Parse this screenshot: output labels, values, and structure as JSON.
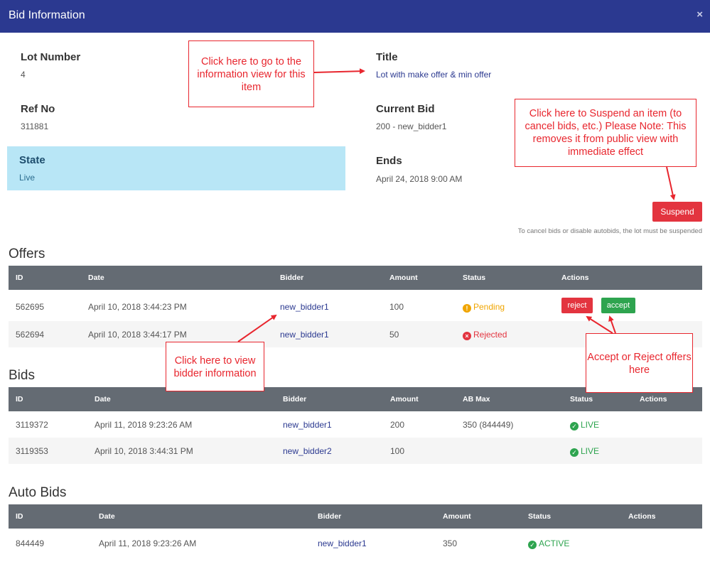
{
  "header": {
    "title": "Bid Information",
    "close_glyph": "×"
  },
  "lot": {
    "lot_number_label": "Lot Number",
    "lot_number": "4",
    "ref_label": "Ref No",
    "ref": "311881",
    "state_label": "State",
    "state": "Live",
    "title_label": "Title",
    "title": "Lot with make offer & min offer",
    "current_bid_label": "Current Bid",
    "current_bid": "200 - new_bidder1",
    "ends_label": "Ends",
    "ends": "April 24, 2018 9:00 AM"
  },
  "suspend": {
    "label": "Suspend",
    "note": "To cancel bids or disable autobids, the lot must be suspended"
  },
  "offers": {
    "title": "Offers",
    "columns": [
      "ID",
      "Date",
      "Bidder",
      "Amount",
      "Status",
      "Actions"
    ],
    "rows": [
      {
        "id": "562695",
        "date": "April 10, 2018 3:44:23 PM",
        "bidder": "new_bidder1",
        "amount": "100",
        "status": "Pending",
        "reject": "reject",
        "accept": "accept"
      },
      {
        "id": "562694",
        "date": "April 10, 2018 3:44:17 PM",
        "bidder": "new_bidder1",
        "amount": "50",
        "status": "Rejected"
      }
    ]
  },
  "bids": {
    "title": "Bids",
    "columns": [
      "ID",
      "Date",
      "Bidder",
      "Amount",
      "AB Max",
      "Status",
      "Actions"
    ],
    "rows": [
      {
        "id": "3119372",
        "date": "April 11, 2018 9:23:26 AM",
        "bidder": "new_bidder1",
        "amount": "200",
        "ab_max": "350 (844449)",
        "status": "LIVE"
      },
      {
        "id": "3119353",
        "date": "April 10, 2018 3:44:31 PM",
        "bidder": "new_bidder2",
        "amount": "100",
        "ab_max": "",
        "status": "LIVE"
      }
    ]
  },
  "auto_bids": {
    "title": "Auto Bids",
    "columns": [
      "ID",
      "Date",
      "Bidder",
      "Amount",
      "Status",
      "Actions"
    ],
    "rows": [
      {
        "id": "844449",
        "date": "April 11, 2018 9:23:26 AM",
        "bidder": "new_bidder1",
        "amount": "350",
        "status": "ACTIVE"
      }
    ]
  },
  "callouts": {
    "info_view": "Click here to go to the information view for this item",
    "suspend": "Click here to Suspend an item (to cancel bids, etc.) Please Note: This removes it from public view with immediate effect",
    "bidder": "Click here to view bidder information",
    "offers": "Accept or Reject offers here"
  },
  "icons": {
    "close": "close-icon",
    "pending": "exclamation-circle-icon",
    "rejected": "x-circle-icon",
    "live": "check-circle-icon"
  },
  "colors": {
    "header": "#2b3990",
    "state_bg": "#b8e6f6",
    "danger": "#e3343f",
    "success": "#2ea44f",
    "warning": "#f0a500",
    "table_header": "#646b73",
    "callout": "#e8262e"
  }
}
